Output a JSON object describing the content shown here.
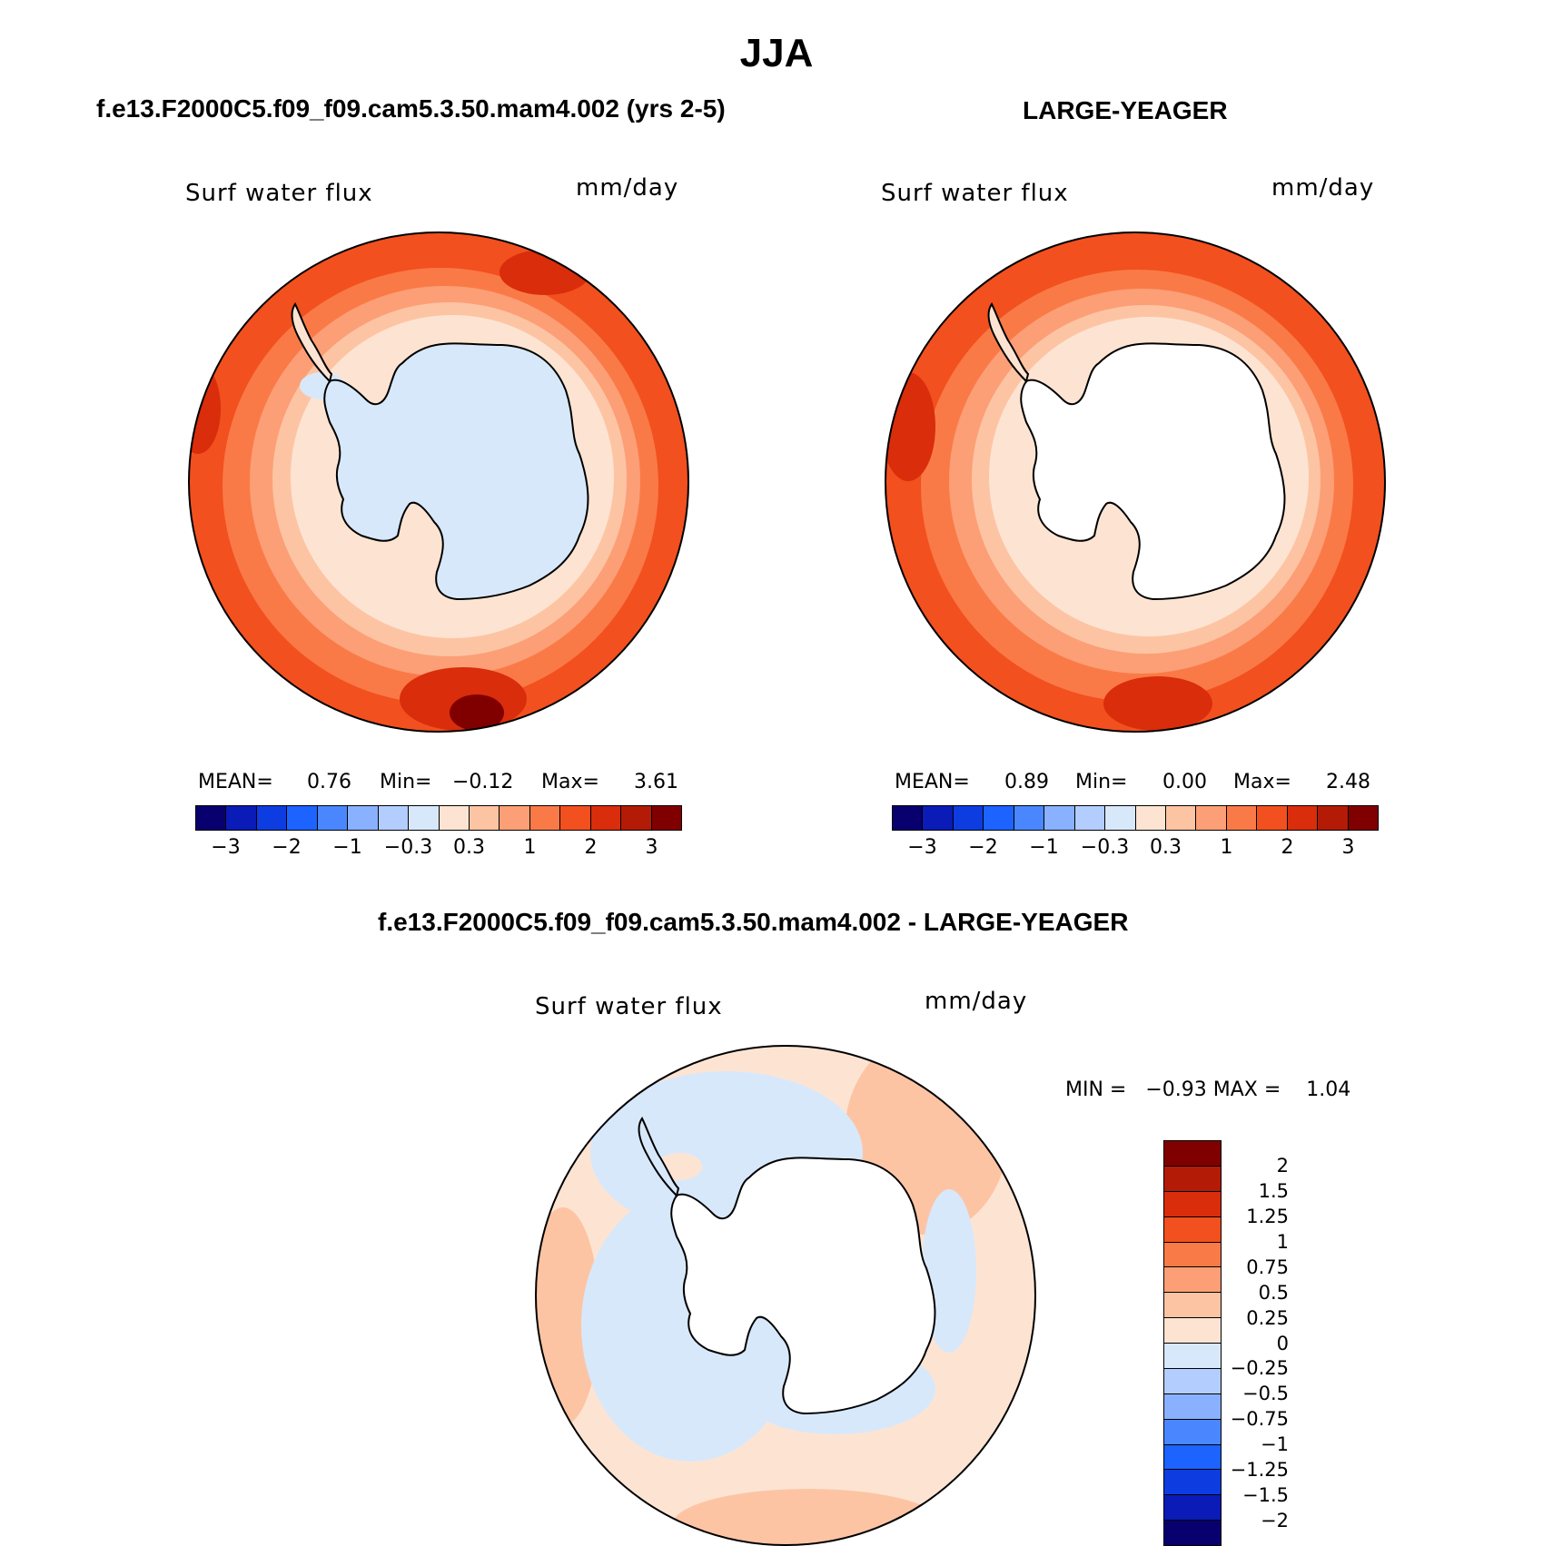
{
  "figure": {
    "title": "JJA"
  },
  "panels": [
    {
      "case_title": "f.e13.F2000C5.f09_f09.cam5.3.50.mam4.002 (yrs 2-5)",
      "variable": "Surf water flux",
      "units": "mm/day",
      "mean_label": "MEAN=",
      "mean": "0.76",
      "min_label": "Min=",
      "min": "−0.12",
      "max_label": "Max=",
      "max": "3.61",
      "colorbar_ticks": [
        "−3",
        "−2",
        "−1",
        "−0.3",
        "0.3",
        "1",
        "2",
        "3"
      ]
    },
    {
      "case_title": "LARGE-YEAGER",
      "variable": "Surf water flux",
      "units": "mm/day",
      "mean_label": "MEAN=",
      "mean": "0.89",
      "min_label": "Min=",
      "min": "0.00",
      "max_label": "Max=",
      "max": "2.48",
      "colorbar_ticks": [
        "−3",
        "−2",
        "−1",
        "−0.3",
        "0.3",
        "1",
        "2",
        "3"
      ]
    }
  ],
  "difference": {
    "title": "f.e13.F2000C5.f09_f09.cam5.3.50.mam4.002 - LARGE-YEAGER",
    "variable": "Surf water flux",
    "units": "mm/day",
    "minmax_text": "MIN =   −0.93 MAX =    1.04",
    "colorbar_ticks": [
      "2",
      "1.5",
      "1.25",
      "1",
      "0.75",
      "0.5",
      "0.25",
      "0",
      "−0.25",
      "−0.5",
      "−0.75",
      "−1",
      "−1.25",
      "−1.5",
      "−2"
    ]
  },
  "colors": {
    "abs_scale": [
      "#08006e",
      "#0a1bb8",
      "#0d3de0",
      "#1c63ff",
      "#4a87ff",
      "#8ab1ff",
      "#b4cdff",
      "#d8e8fb",
      "#fde4d2",
      "#fdc4a4",
      "#fc9f76",
      "#fa7a47",
      "#f2501f",
      "#d92d0c",
      "#b41b06",
      "#800000"
    ],
    "diff_scale": [
      "#800000",
      "#b41b06",
      "#d92d0c",
      "#f2501f",
      "#fa7a47",
      "#fc9f76",
      "#fdc4a4",
      "#fde4d2",
      "#d8e8fb",
      "#b4cdff",
      "#8ab1ff",
      "#4a87ff",
      "#1c63ff",
      "#0d3de0",
      "#0a1bb8",
      "#08006e"
    ],
    "land_ice_model": "#d8e8fb",
    "land_obs": "#ffffff"
  }
}
